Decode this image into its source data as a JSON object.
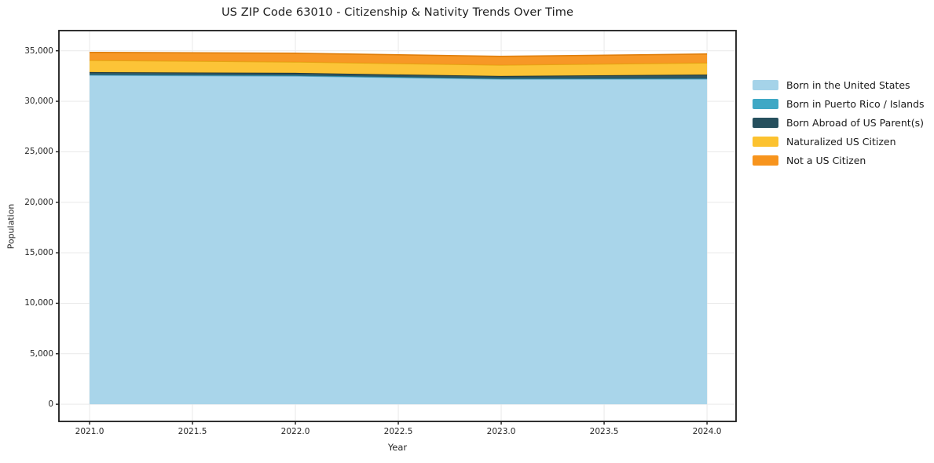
{
  "title": "US ZIP Code 63010 - Citizenship & Nativity Trends Over Time",
  "chart_data": {
    "type": "area",
    "stacked": true,
    "title": "US ZIP Code 63010 - Citizenship & Nativity Trends Over Time",
    "xlabel": "Year",
    "ylabel": "Population",
    "x": [
      2021,
      2022,
      2023,
      2024
    ],
    "xlim": [
      2020.851,
      2024.141
    ],
    "ylim": [
      -1700,
      37000
    ],
    "grid": true,
    "grid_color": "#e9e9e9",
    "spine_color": "#1a1a1a",
    "legend_position": "right-outside",
    "xticks": {
      "values": [
        2021.0,
        2021.5,
        2022.0,
        2022.5,
        2023.0,
        2023.5,
        2024.0
      ],
      "labels": [
        "2021.0",
        "2021.5",
        "2022.0",
        "2022.5",
        "2023.0",
        "2023.5",
        "2024.0"
      ]
    },
    "yticks": {
      "values": [
        0,
        5000,
        10000,
        15000,
        20000,
        25000,
        30000,
        35000
      ],
      "labels": [
        "0",
        "5,000",
        "10,000",
        "15,000",
        "20,000",
        "25,000",
        "30,000",
        "35,000"
      ]
    },
    "series": [
      {
        "name": "Born in the United States",
        "color": "#a5d3e9",
        "edge": "#74aecd",
        "values": [
          32580,
          32500,
          32200,
          32210
        ]
      },
      {
        "name": "Born in Puerto Rico / Islands",
        "color": "#3fa8c5",
        "edge": "#2b8aa6",
        "values": [
          60,
          60,
          50,
          50
        ]
      },
      {
        "name": "Born Abroad of US Parent(s)",
        "color": "#26505e",
        "edge": "#142f38",
        "values": [
          250,
          250,
          250,
          380
        ]
      },
      {
        "name": "Naturalized US Citizen",
        "color": "#fcc22f",
        "edge": "#e3a713",
        "values": [
          1170,
          1090,
          1090,
          1170
        ]
      },
      {
        "name": "Not a US Citizen",
        "color": "#f7941d",
        "edge": "#e07f0c",
        "values": [
          780,
          860,
          860,
          870
        ]
      }
    ],
    "stack_totals": [
      34840,
      34760,
      34450,
      34680
    ]
  }
}
